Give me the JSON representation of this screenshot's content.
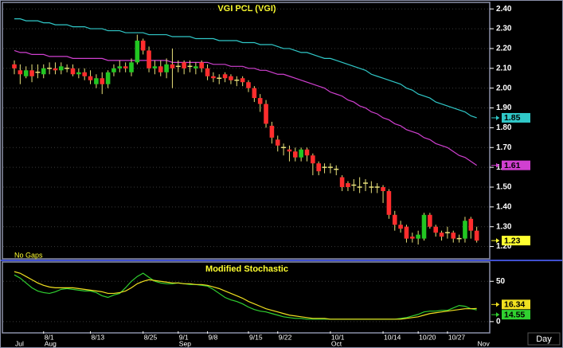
{
  "chart_data": [
    {
      "type": "candlestick",
      "title": "VGI  PCL  (VGI)",
      "note": "No Gaps",
      "up_color": "#22c722",
      "down_color": "#ff2d2d",
      "wick_color": "#e8e07a",
      "open": [
        2.12,
        2.09,
        2.06,
        2.09,
        2.08,
        2.07,
        2.1,
        2.1,
        2.09,
        2.1,
        2.1,
        2.07,
        2.08,
        2.06,
        2.02,
        2.05,
        2.02,
        2.08,
        2.1,
        2.11,
        2.08,
        2.13,
        2.24,
        2.19,
        2.1,
        2.11,
        2.08,
        2.12,
        2.11,
        2.13,
        2.11,
        2.1,
        2.13,
        2.1,
        2.06,
        2.05,
        2.07,
        2.06,
        2.04,
        2.05,
        2.03,
        2.0,
        1.95,
        1.92,
        1.81,
        1.74,
        1.7,
        1.69,
        1.68,
        1.65,
        1.69,
        1.66,
        1.62,
        1.6,
        1.6,
        1.59,
        1.55,
        1.52,
        1.51,
        1.5,
        1.52,
        1.5,
        1.5,
        1.5,
        1.48,
        1.36,
        1.31,
        1.3,
        1.25,
        1.24,
        1.24,
        1.36,
        1.3,
        1.27,
        1.27,
        1.27,
        1.24,
        1.24,
        1.34,
        1.28
      ],
      "high": [
        2.14,
        2.12,
        2.11,
        2.12,
        2.12,
        2.12,
        2.13,
        2.13,
        2.13,
        2.12,
        2.12,
        2.1,
        2.1,
        2.09,
        2.07,
        2.08,
        2.09,
        2.12,
        2.14,
        2.13,
        2.15,
        2.27,
        2.25,
        2.21,
        2.14,
        2.14,
        2.15,
        2.2,
        2.14,
        2.14,
        2.14,
        2.13,
        2.14,
        2.12,
        2.08,
        2.07,
        2.08,
        2.07,
        2.06,
        2.06,
        2.04,
        2.01,
        1.97,
        1.94,
        1.83,
        1.76,
        1.72,
        1.71,
        1.7,
        1.7,
        1.7,
        1.67,
        1.63,
        1.62,
        1.62,
        1.61,
        1.56,
        1.53,
        1.54,
        1.55,
        1.54,
        1.53,
        1.52,
        1.51,
        1.49,
        1.38,
        1.33,
        1.31,
        1.27,
        1.28,
        1.37,
        1.37,
        1.31,
        1.28,
        1.3,
        1.28,
        1.26,
        1.35,
        1.35,
        1.3
      ],
      "low": [
        2.07,
        2.02,
        2.05,
        2.03,
        2.05,
        2.05,
        2.07,
        2.07,
        2.07,
        2.08,
        2.06,
        2.05,
        2.04,
        2.02,
        2.0,
        1.97,
        2.0,
        2.06,
        2.08,
        2.08,
        2.06,
        2.12,
        2.17,
        2.08,
        2.07,
        2.06,
        2.05,
        2.0,
        2.08,
        2.07,
        2.08,
        2.07,
        2.08,
        2.04,
        2.03,
        2.02,
        2.03,
        2.02,
        2.01,
        2.01,
        1.98,
        1.93,
        1.88,
        1.8,
        1.72,
        1.68,
        1.66,
        1.63,
        1.63,
        1.63,
        1.63,
        1.56,
        1.56,
        1.57,
        1.57,
        1.56,
        1.48,
        1.48,
        1.48,
        1.47,
        1.48,
        1.47,
        1.47,
        1.42,
        1.34,
        1.28,
        1.27,
        1.22,
        1.22,
        1.21,
        1.23,
        1.29,
        1.25,
        1.23,
        1.24,
        1.22,
        1.22,
        1.22,
        1.24,
        1.22
      ],
      "close": [
        2.1,
        2.07,
        2.09,
        2.06,
        2.08,
        2.1,
        2.1,
        2.09,
        2.11,
        2.1,
        2.07,
        2.08,
        2.06,
        2.04,
        2.05,
        2.02,
        2.08,
        2.1,
        2.11,
        2.1,
        2.13,
        2.24,
        2.19,
        2.1,
        2.11,
        2.08,
        2.12,
        2.1,
        2.11,
        2.1,
        2.11,
        2.11,
        2.1,
        2.06,
        2.05,
        2.05,
        2.05,
        2.04,
        2.04,
        2.03,
        2.0,
        1.95,
        1.92,
        1.82,
        1.75,
        1.71,
        1.7,
        1.68,
        1.65,
        1.69,
        1.66,
        1.62,
        1.58,
        1.6,
        1.6,
        1.59,
        1.5,
        1.5,
        1.51,
        1.5,
        1.52,
        1.5,
        1.5,
        1.48,
        1.36,
        1.31,
        1.29,
        1.24,
        1.24,
        1.26,
        1.36,
        1.3,
        1.27,
        1.25,
        1.27,
        1.24,
        1.24,
        1.33,
        1.28,
        1.23
      ],
      "lines": [
        {
          "color": "#30c8c8",
          "values": [
            2.35,
            2.35,
            2.34,
            2.34,
            2.34,
            2.33,
            2.33,
            2.32,
            2.32,
            2.32,
            2.31,
            2.31,
            2.31,
            2.3,
            2.3,
            2.3,
            2.29,
            2.29,
            2.29,
            2.28,
            2.28,
            2.28,
            2.28,
            2.27,
            2.27,
            2.27,
            2.27,
            2.26,
            2.26,
            2.26,
            2.26,
            2.25,
            2.25,
            2.25,
            2.25,
            2.24,
            2.24,
            2.24,
            2.24,
            2.23,
            2.23,
            2.23,
            2.22,
            2.22,
            2.22,
            2.21,
            2.2,
            2.2,
            2.19,
            2.18,
            2.18,
            2.17,
            2.16,
            2.15,
            2.15,
            2.14,
            2.13,
            2.12,
            2.11,
            2.1,
            2.09,
            2.07,
            2.06,
            2.05,
            2.04,
            2.03,
            2.02,
            2.0,
            1.99,
            1.97,
            1.96,
            1.95,
            1.93,
            1.92,
            1.91,
            1.9,
            1.89,
            1.88,
            1.86,
            1.85
          ]
        },
        {
          "color": "#d040d0",
          "values": [
            2.19,
            2.18,
            2.18,
            2.17,
            2.17,
            2.17,
            2.16,
            2.16,
            2.16,
            2.16,
            2.15,
            2.15,
            2.15,
            2.15,
            2.15,
            2.15,
            2.14,
            2.14,
            2.14,
            2.14,
            2.14,
            2.14,
            2.14,
            2.14,
            2.14,
            2.14,
            2.14,
            2.13,
            2.13,
            2.13,
            2.13,
            2.13,
            2.13,
            2.13,
            2.12,
            2.12,
            2.12,
            2.11,
            2.11,
            2.11,
            2.1,
            2.1,
            2.09,
            2.09,
            2.08,
            2.07,
            2.07,
            2.06,
            2.05,
            2.04,
            2.03,
            2.02,
            2.01,
            2.0,
            1.98,
            1.97,
            1.96,
            1.94,
            1.93,
            1.91,
            1.9,
            1.88,
            1.87,
            1.85,
            1.84,
            1.82,
            1.81,
            1.79,
            1.78,
            1.77,
            1.75,
            1.74,
            1.72,
            1.71,
            1.7,
            1.68,
            1.66,
            1.65,
            1.63,
            1.61
          ]
        }
      ],
      "last_label_color": "#ffff30",
      "ylim": [
        1.15,
        2.425
      ],
      "yticks": [
        {
          "value": 1.2,
          "label": "1.20"
        },
        {
          "value": 1.3,
          "label": "1.30"
        },
        {
          "value": 1.4,
          "label": "1.40"
        },
        {
          "value": 1.5,
          "label": "1.50"
        },
        {
          "value": 1.6,
          "label": "1.60"
        },
        {
          "value": 1.7,
          "label": "1.70"
        },
        {
          "value": 1.8,
          "label": "1.80"
        },
        {
          "value": 1.9,
          "label": "1.90"
        },
        {
          "value": 2.0,
          "label": "2.00"
        },
        {
          "value": 2.1,
          "label": "2.10"
        },
        {
          "value": 2.2,
          "label": "2.20"
        },
        {
          "value": 2.3,
          "label": "2.30"
        },
        {
          "value": 2.4,
          "label": "2.40"
        }
      ],
      "grid": true
    },
    {
      "type": "line",
      "title": "Modified  Stochastic",
      "x_label": "Day",
      "categories": [
        null,
        null,
        null,
        null,
        null,
        "8/1",
        null,
        null,
        null,
        null,
        null,
        null,
        null,
        "8/13",
        null,
        null,
        null,
        null,
        null,
        null,
        null,
        null,
        "8/25",
        null,
        null,
        null,
        null,
        null,
        "9/1",
        null,
        null,
        null,
        null,
        "9/8",
        null,
        null,
        null,
        null,
        null,
        null,
        "9/15",
        null,
        null,
        null,
        null,
        "9/22",
        null,
        null,
        null,
        null,
        null,
        null,
        null,
        null,
        "10/1",
        null,
        null,
        null,
        null,
        null,
        null,
        null,
        null,
        "10/14",
        null,
        null,
        null,
        null,
        null,
        "10/20",
        null,
        null,
        null,
        null,
        "10/27",
        null,
        null,
        null,
        null,
        null
      ],
      "months": [
        "Jul",
        null,
        null,
        null,
        null,
        "Aug",
        null,
        null,
        null,
        null,
        null,
        null,
        null,
        null,
        null,
        null,
        null,
        null,
        null,
        null,
        null,
        null,
        null,
        null,
        null,
        null,
        null,
        null,
        "Sep",
        null,
        null,
        null,
        null,
        null,
        null,
        null,
        null,
        null,
        null,
        null,
        null,
        null,
        null,
        null,
        null,
        null,
        null,
        null,
        null,
        null,
        null,
        null,
        null,
        null,
        "Oct",
        null,
        null,
        null,
        null,
        null,
        null,
        null,
        null,
        null,
        null,
        null,
        null,
        null,
        null,
        null,
        null,
        null,
        null,
        null,
        null,
        null,
        null,
        null,
        null,
        "Nov"
      ],
      "series": [
        {
          "color": "#30d030",
          "values": [
            58,
            54,
            48,
            42,
            38,
            36,
            35,
            37,
            40,
            41,
            40,
            39,
            38,
            38,
            36,
            32,
            30,
            33,
            35,
            42,
            50,
            56,
            60,
            55,
            50,
            48,
            47,
            47,
            48,
            47,
            46,
            46,
            45,
            44,
            40,
            35,
            30,
            27,
            25,
            22,
            18,
            15,
            13,
            12,
            10,
            8,
            6,
            5,
            4,
            4,
            3,
            3,
            3,
            3,
            3,
            3,
            3,
            3,
            3,
            3,
            3,
            3,
            3,
            3,
            3,
            3,
            4,
            5,
            7,
            9,
            12,
            13,
            13,
            14,
            14,
            17,
            20,
            19,
            16,
            14.55
          ]
        },
        {
          "color": "#f0e020",
          "values": [
            62,
            60,
            56,
            52,
            48,
            45,
            43,
            42,
            42,
            42,
            42,
            41,
            40,
            39,
            38,
            37,
            35,
            35,
            36,
            38,
            42,
            47,
            50,
            52,
            51,
            50,
            49,
            48,
            48,
            47,
            47,
            46,
            46,
            45,
            43,
            41,
            38,
            35,
            32,
            29,
            25,
            22,
            19,
            16,
            14,
            12,
            10,
            8,
            7,
            6,
            5,
            4,
            4,
            4,
            3,
            3,
            3,
            3,
            3,
            3,
            3,
            3,
            3,
            3,
            3,
            3,
            3,
            4,
            5,
            6,
            8,
            10,
            11,
            12,
            13,
            14,
            15,
            16,
            16,
            16.34
          ]
        }
      ],
      "ylim": [
        -12,
        72
      ],
      "yticks": [
        0,
        50
      ],
      "grid": true
    }
  ]
}
